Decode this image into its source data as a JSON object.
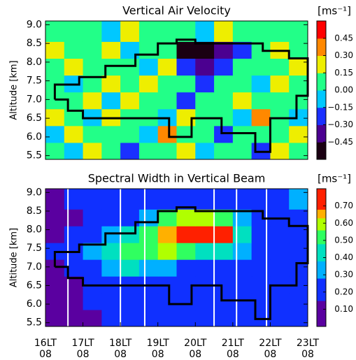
{
  "chart_data": [
    {
      "type": "heatmap",
      "title": "Vertical Air Velocity",
      "colorbar_label": "[ms⁻¹]",
      "y_label": "Altitude [km]",
      "xlim": [
        16,
        23
      ],
      "ylim": [
        5.4,
        9.1
      ],
      "yticks": [
        {
          "value": 5.5,
          "label": "5.5"
        },
        {
          "value": 6,
          "label": "6.0"
        },
        {
          "value": 6.5,
          "label": "6.5"
        },
        {
          "value": 7,
          "label": "7.0"
        },
        {
          "value": 7.5,
          "label": "7.5"
        },
        {
          "value": 8,
          "label": "8.0"
        },
        {
          "value": 8.5,
          "label": "8.5"
        },
        {
          "value": 9,
          "label": "9.0"
        }
      ],
      "x_edges": [
        16,
        16.5,
        17,
        17.5,
        18,
        18.5,
        19,
        19.5,
        20,
        20.5,
        21,
        21.5,
        22,
        22.5,
        23
      ],
      "y_edges": [
        5.4,
        5.85,
        6.3,
        6.75,
        7.2,
        7.65,
        8.1,
        8.55,
        9.1
      ],
      "z": [
        [
          0.1,
          -0.1,
          0.2,
          0,
          -0.2,
          0.1,
          0,
          0.2,
          -0.1,
          0,
          0.1,
          -0.2,
          0.2,
          0
        ],
        [
          -0.1,
          0.2,
          0,
          0.1,
          0,
          -0.1,
          0.3,
          0,
          0.1,
          -0.2,
          0,
          0.1,
          0,
          0.2
        ],
        [
          0.2,
          0,
          -0.1,
          0.2,
          0.1,
          0,
          -0.1,
          0.2,
          0,
          0.1,
          -0.1,
          0.3,
          0,
          -0.1
        ],
        [
          0,
          0.1,
          0.2,
          -0.1,
          0.2,
          0.1,
          0,
          -0.2,
          0.1,
          0,
          0.2,
          0,
          0.1,
          0
        ],
        [
          0.1,
          -0.1,
          0,
          0.2,
          0,
          0.2,
          0.1,
          0,
          -0.2,
          0.1,
          0,
          -0.1,
          0.2,
          0.1
        ],
        [
          0,
          0.2,
          0.1,
          0,
          0.1,
          -0.1,
          0.2,
          -0.3,
          -0.4,
          -0.3,
          0,
          0.1,
          0,
          0.2
        ],
        [
          0.2,
          0,
          0.1,
          0.2,
          -0.1,
          0.1,
          0,
          -0.5,
          -0.5,
          -0.4,
          -0.2,
          0.1,
          0.2,
          0
        ],
        [
          0.1,
          0.1,
          0,
          -0.1,
          0.2,
          0,
          0.1,
          0,
          -0.1,
          0.2,
          0,
          0.1,
          0,
          0.1
        ]
      ],
      "levels": [
        -0.6,
        -0.45,
        -0.3,
        -0.15,
        0,
        0.15,
        0.3,
        0.45,
        0.6
      ],
      "colors": [
        "#1a0012",
        "#4b0090",
        "#1a30ff",
        "#00c8ff",
        "#22ff88",
        "#eeee00",
        "#ff8800",
        "#ff0000"
      ],
      "cticks": [
        {
          "value": -0.45,
          "label": "−0.45"
        },
        {
          "value": -0.3,
          "label": "−0.30"
        },
        {
          "value": -0.15,
          "label": "−0.15"
        },
        {
          "value": 0,
          "label": "0.00"
        },
        {
          "value": 0.15,
          "label": "0.15"
        },
        {
          "value": 0.3,
          "label": "0.30"
        },
        {
          "value": 0.45,
          "label": "0.45"
        }
      ],
      "contour": {
        "x": [
          16.25,
          16.25,
          16.9,
          16.9,
          17.6,
          17.6,
          18.4,
          18.4,
          19,
          19,
          19.5,
          19.5,
          20,
          20,
          21.8,
          21.8,
          22.5,
          22.5,
          23,
          23,
          22.7,
          22.7,
          22,
          22,
          21.6,
          21.6,
          20.7,
          20.7,
          19.9,
          19.9,
          19.3,
          19.3,
          17,
          17,
          16.6,
          16.6,
          16.25
        ],
        "y": [
          7,
          7.4,
          7.4,
          7.6,
          7.6,
          7.9,
          7.9,
          8.2,
          8.2,
          8.5,
          8.5,
          8.6,
          8.6,
          8.5,
          8.5,
          8.3,
          8.3,
          8.1,
          8.1,
          7.1,
          7.1,
          6.5,
          6.5,
          5.6,
          5.6,
          6.1,
          6.1,
          6.5,
          6.5,
          6,
          6,
          6.5,
          6.5,
          6.7,
          6.7,
          7,
          7
        ]
      }
    },
    {
      "type": "heatmap",
      "title": "Spectral Width in Vertical Beam",
      "colorbar_label": "[ms⁻¹]",
      "y_label": "Altitude [km]",
      "xlim": [
        16,
        23
      ],
      "ylim": [
        5.4,
        9.1
      ],
      "xticks": [
        {
          "value": 16,
          "label": "16LT\n08"
        },
        {
          "value": 17,
          "label": "17LT\n08"
        },
        {
          "value": 18,
          "label": "18LT\n08"
        },
        {
          "value": 19,
          "label": "19LT\n08"
        },
        {
          "value": 20,
          "label": "20LT\n08"
        },
        {
          "value": 21,
          "label": "21LT\n08"
        },
        {
          "value": 22,
          "label": "22LT\n08"
        },
        {
          "value": 23,
          "label": "23LT\n08"
        }
      ],
      "yticks": [
        {
          "value": 5.5,
          "label": "5.5"
        },
        {
          "value": 6,
          "label": "6.0"
        },
        {
          "value": 6.5,
          "label": "6.5"
        },
        {
          "value": 7,
          "label": "7.0"
        },
        {
          "value": 7.5,
          "label": "7.5"
        },
        {
          "value": 8,
          "label": "8.0"
        },
        {
          "value": 8.5,
          "label": "8.5"
        },
        {
          "value": 9,
          "label": "9.0"
        }
      ],
      "x_edges": [
        16,
        16.5,
        17,
        17.5,
        18,
        18.5,
        19,
        19.5,
        20,
        20.5,
        21,
        21.5,
        22,
        22.5,
        23
      ],
      "y_edges": [
        5.4,
        5.85,
        6.3,
        6.75,
        7.2,
        7.65,
        8.1,
        8.55,
        9.1
      ],
      "z": [
        [
          0.1,
          0.05,
          0.1,
          0.2,
          0.2,
          0.2,
          0.2,
          0.2,
          0.2,
          0.2,
          0.2,
          0.2,
          0.2,
          0.25
        ],
        [
          0.05,
          0.1,
          0.2,
          0.2,
          0.2,
          0.2,
          0.2,
          0.2,
          0.2,
          0.2,
          0.2,
          0.2,
          0.2,
          0.2
        ],
        [
          0.05,
          0.1,
          0.2,
          0.2,
          0.2,
          0.25,
          0.2,
          0.2,
          0.2,
          0.2,
          0.2,
          0.2,
          0.2,
          0.2
        ],
        [
          0.1,
          0.2,
          0.25,
          0.35,
          0.4,
          0.35,
          0.3,
          0.25,
          0.25,
          0.2,
          0.2,
          0.2,
          0.2,
          0.2
        ],
        [
          0.2,
          0.2,
          0.3,
          0.45,
          0.5,
          0.55,
          0.6,
          0.5,
          0.45,
          0.4,
          0.3,
          0.2,
          0.2,
          0.2
        ],
        [
          0.1,
          0.2,
          0.2,
          0.3,
          0.4,
          0.5,
          0.65,
          0.7,
          0.75,
          0.7,
          0.4,
          0.25,
          0.2,
          0.2
        ],
        [
          0.1,
          0.1,
          0.2,
          0.2,
          0.25,
          0.3,
          0.5,
          0.6,
          0.6,
          0.5,
          0.35,
          0.2,
          0.2,
          0.25
        ],
        [
          0.1,
          0.2,
          0.2,
          0.2,
          0.2,
          0.2,
          0.2,
          0.2,
          0.2,
          0.2,
          0.2,
          0.2,
          0.25,
          0.3
        ]
      ],
      "levels": [
        0,
        0.15,
        0.28,
        0.38,
        0.48,
        0.56,
        0.63,
        0.68,
        0.8
      ],
      "colors": [
        "#5a00a0",
        "#1030ff",
        "#00b0ff",
        "#00e0c0",
        "#30ff60",
        "#b0ff00",
        "#ffb000",
        "#ff2000"
      ],
      "cticks": [
        {
          "value": 0.1,
          "label": "0.10"
        },
        {
          "value": 0.2,
          "label": "0.20"
        },
        {
          "value": 0.3,
          "label": "0.30"
        },
        {
          "value": 0.4,
          "label": "0.40"
        },
        {
          "value": 0.5,
          "label": "0.50"
        },
        {
          "value": 0.6,
          "label": "0.60"
        },
        {
          "value": 0.7,
          "label": "0.70"
        }
      ],
      "gaps": [
        16.6,
        18,
        18.65,
        20.5,
        21.1,
        21.9
      ],
      "contour": {
        "x": [
          16.25,
          16.25,
          16.9,
          16.9,
          17.6,
          17.6,
          18.4,
          18.4,
          19,
          19,
          19.5,
          19.5,
          20,
          20,
          21.8,
          21.8,
          22.5,
          22.5,
          23,
          23,
          22.7,
          22.7,
          22,
          22,
          21.6,
          21.6,
          20.7,
          20.7,
          19.9,
          19.9,
          19.3,
          19.3,
          17,
          17,
          16.6,
          16.6,
          16.25
        ],
        "y": [
          7,
          7.4,
          7.4,
          7.6,
          7.6,
          7.9,
          7.9,
          8.2,
          8.2,
          8.5,
          8.5,
          8.6,
          8.6,
          8.5,
          8.5,
          8.3,
          8.3,
          8.1,
          8.1,
          7.1,
          7.1,
          6.5,
          6.5,
          5.6,
          5.6,
          6.1,
          6.1,
          6.5,
          6.5,
          6,
          6,
          6.5,
          6.5,
          6.7,
          6.7,
          7,
          7
        ]
      }
    }
  ]
}
